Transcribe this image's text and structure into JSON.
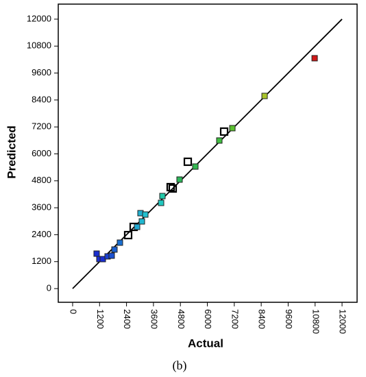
{
  "chart_data": {
    "type": "scatter",
    "caption": "(b)",
    "x_label": "Actual",
    "y_label": "Predicted",
    "xlim": [
      -640,
      12670
    ],
    "ylim": [
      -610,
      12670
    ],
    "xticks": [
      0,
      1200,
      2400,
      3600,
      4800,
      6000,
      7200,
      8400,
      9600,
      10800,
      12000
    ],
    "yticks": [
      0,
      1200,
      2400,
      3600,
      4800,
      6000,
      7200,
      8400,
      9600,
      10800,
      12000
    ],
    "reference_line": {
      "x": [
        0,
        12000
      ],
      "y": [
        0,
        12000
      ],
      "color": "#000000"
    },
    "series": [
      {
        "color": "#000000",
        "hollow": true,
        "x": [
          2473,
          2718,
          4366,
          4458,
          5130,
          6748
        ],
        "values": [
          2382,
          2748,
          4519,
          4458,
          5649,
          6992
        ]
      },
      {
        "hollow": false,
        "x": [
          1069,
          1191,
          1344,
          1557,
          1740,
          1863,
          2107,
          2870,
          3084,
          3023,
          3237,
          3939,
          4000,
          4763,
          5466,
          6534,
          7115,
          8550,
          10779
        ],
        "values": [
          1557,
          1313,
          1313,
          1435,
          1466,
          1740,
          2046,
          2748,
          2992,
          3359,
          3298,
          3817,
          4122,
          4855,
          5435,
          6595,
          7145,
          8580,
          10260
        ],
        "colors": [
          "#1a2fd0",
          "#1a2fd0",
          "#1a2fd0",
          "#1a40d0",
          "#1a50d0",
          "#1a60d0",
          "#1a6fd0",
          "#22a8d0",
          "#22b8d0",
          "#22b0d0",
          "#22c0d0",
          "#22c8c0",
          "#22c8a8",
          "#2fb55a",
          "#34b850",
          "#40bc40",
          "#5ac030",
          "#a8c42a",
          "#d01818"
        ]
      }
    ]
  }
}
